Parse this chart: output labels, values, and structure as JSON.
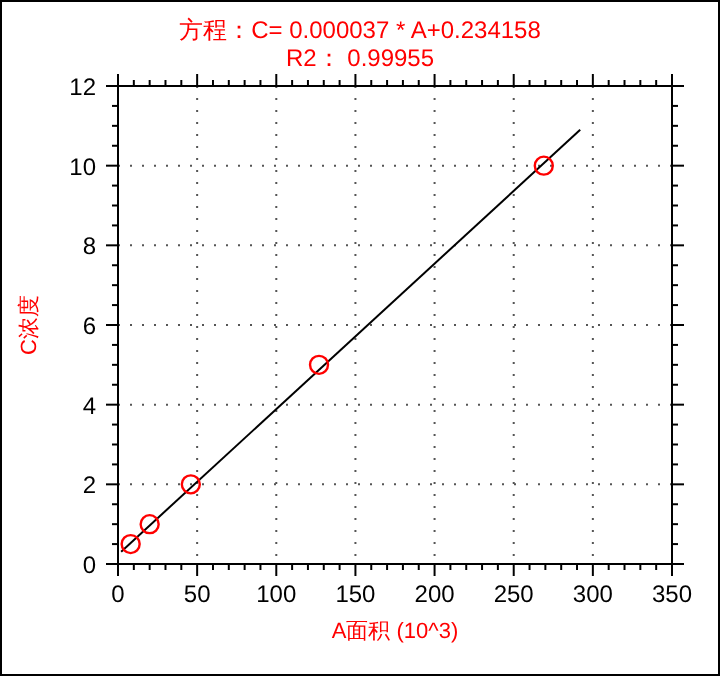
{
  "chart_data": {
    "type": "scatter",
    "title": "方程：C= 0.000037 * A+0.234158",
    "subtitle": "R2： 0.99955",
    "xlabel": "A面积 (10^3)",
    "ylabel": "C浓度",
    "xlim": [
      0,
      350
    ],
    "ylim": [
      0,
      12
    ],
    "xticks": [
      0,
      {
        "value": 10,
        "label": null
      },
      {
        "value": 20,
        "label": null
      },
      {
        "value": 30,
        "label": null
      },
      {
        "value": 40,
        "label": null
      },
      50,
      {
        "value": 60,
        "label": null
      },
      {
        "value": 70,
        "label": null
      },
      {
        "value": 80,
        "label": null
      },
      {
        "value": 90,
        "label": null
      },
      100,
      {
        "value": 110,
        "label": null
      },
      {
        "value": 120,
        "label": null
      },
      {
        "value": 130,
        "label": null
      },
      {
        "value": 140,
        "label": null
      },
      150,
      {
        "value": 160,
        "label": null
      },
      {
        "value": 170,
        "label": null
      },
      {
        "value": 180,
        "label": null
      },
      {
        "value": 190,
        "label": null
      },
      200,
      {
        "value": 210,
        "label": null
      },
      {
        "value": 220,
        "label": null
      },
      {
        "value": 230,
        "label": null
      },
      {
        "value": 240,
        "label": null
      },
      250,
      {
        "value": 260,
        "label": null
      },
      {
        "value": 270,
        "label": null
      },
      {
        "value": 280,
        "label": null
      },
      {
        "value": 290,
        "label": null
      },
      300,
      {
        "value": 310,
        "label": null
      },
      {
        "value": 320,
        "label": null
      },
      {
        "value": 330,
        "label": null
      },
      {
        "value": 340,
        "label": null
      },
      350
    ],
    "yticks": [
      0,
      {
        "value": 0.5,
        "label": null
      },
      {
        "value": 1,
        "label": null
      },
      {
        "value": 1.5,
        "label": null
      },
      2,
      {
        "value": 2.5,
        "label": null
      },
      {
        "value": 3,
        "label": null
      },
      {
        "value": 3.5,
        "label": null
      },
      4,
      {
        "value": 4.5,
        "label": null
      },
      {
        "value": 5,
        "label": null
      },
      {
        "value": 5.5,
        "label": null
      },
      6,
      {
        "value": 6.5,
        "label": null
      },
      {
        "value": 7,
        "label": null
      },
      {
        "value": 7.5,
        "label": null
      },
      8,
      {
        "value": 8.5,
        "label": null
      },
      {
        "value": 9,
        "label": null
      },
      {
        "value": 9.5,
        "label": null
      },
      10,
      {
        "value": 10.5,
        "label": null
      },
      {
        "value": 11,
        "label": null
      },
      {
        "value": 11.5,
        "label": null
      },
      12
    ],
    "grid": true,
    "marker": "circle",
    "series": [
      {
        "color": "#ff0000",
        "x": [
          8,
          20,
          46,
          127,
          269
        ],
        "values": [
          0.5,
          1,
          2,
          5,
          10
        ]
      },
      {
        "type": "line",
        "color": "#000000",
        "marker": "none",
        "x": [
          2,
          292
        ],
        "values": [
          0.31,
          10.9
        ]
      }
    ]
  }
}
